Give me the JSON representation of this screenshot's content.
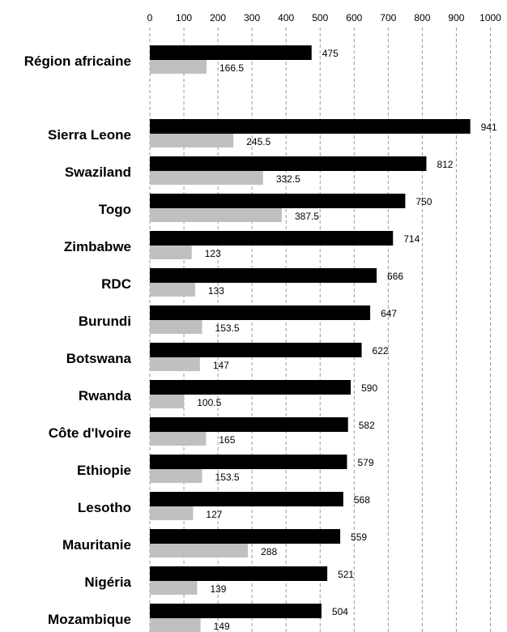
{
  "chart_data": {
    "type": "bar",
    "orientation": "horizontal",
    "title": "",
    "xlabel": "",
    "ylabel": "",
    "xlim": [
      0,
      1000
    ],
    "x_ticks": [
      "0",
      "100",
      "200",
      "300",
      "400",
      "500",
      "600",
      "700",
      "800",
      "900",
      "1000"
    ],
    "x_axis_position": "top",
    "grid": true,
    "legend": "none",
    "categories": [
      "Région africaine",
      "",
      "Sierra Leone",
      "Swaziland",
      "Togo",
      "Zimbabwe",
      "RDC",
      "Burundi",
      "Botswana",
      "Rwanda",
      "Côte d'Ivoire",
      "Ethiopie",
      "Lesotho",
      "Mauritanie",
      "Nigéria",
      "Mozambique"
    ],
    "series": [
      {
        "color": "#000000",
        "values": [
          475,
          null,
          941,
          812,
          750,
          714,
          666,
          647,
          622,
          590,
          582,
          579,
          568,
          559,
          521,
          504
        ],
        "labels": [
          "475",
          "",
          "941",
          "812",
          "750",
          "714",
          "666",
          "647",
          "622",
          "590",
          "582",
          "579",
          "568",
          "559",
          "521",
          "504"
        ]
      },
      {
        "color": "#c0c0c0",
        "values": [
          166.5,
          null,
          245.5,
          332.5,
          387.5,
          123,
          133,
          153.5,
          147,
          100.5,
          165,
          153.5,
          127,
          288,
          139,
          149
        ],
        "labels": [
          "166.5",
          "",
          "245.5",
          "332.5",
          "387.5",
          "123",
          "133",
          "153.5",
          "147",
          "100.5",
          "165",
          "153.5",
          "127",
          "288",
          "139",
          "149"
        ]
      }
    ]
  }
}
